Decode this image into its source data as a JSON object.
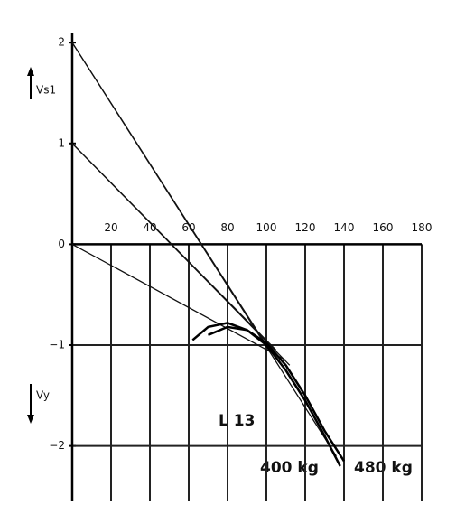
{
  "chart_data": {
    "type": "line",
    "xlim": [
      0,
      180
    ],
    "ylim": [
      -2.55,
      2.1
    ],
    "xticks": [
      20,
      40,
      60,
      80,
      100,
      120,
      140,
      160,
      180
    ],
    "yticks": [
      2,
      1,
      0,
      {
        "value": -1,
        "label": "−1"
      },
      {
        "value": -2,
        "label": "−2"
      }
    ],
    "grid": true,
    "y_label_up": "Vs1",
    "y_label_down": "Vy",
    "annotations": [
      "L 13",
      "400 kg",
      "480 kg"
    ],
    "series": [
      {
        "color": "#111",
        "x": [
          0,
          136
        ],
        "values": [
          2,
          -2.1
        ]
      },
      {
        "color": "#111",
        "x": [
          0,
          100
        ],
        "values": [
          2,
          -1.0
        ]
      },
      {
        "color": "#111",
        "x": [
          0,
          112
        ],
        "values": [
          1,
          -1.2
        ]
      },
      {
        "color": "#111",
        "x": [
          0,
          105
        ],
        "values": [
          1,
          -1.05
        ]
      },
      {
        "color": "#111",
        "x": [
          0,
          110
        ],
        "values": [
          0,
          -1.15
        ]
      },
      {
        "color": "#000",
        "x": [
          62,
          70,
          80,
          90,
          100,
          110,
          120,
          130,
          138
        ],
        "values": [
          -0.95,
          -0.82,
          -0.78,
          -0.85,
          -1.0,
          -1.25,
          -1.55,
          -1.9,
          -2.2
        ]
      },
      {
        "color": "#000",
        "x": [
          70,
          80,
          90,
          100,
          110,
          120,
          130,
          140
        ],
        "values": [
          -0.9,
          -0.82,
          -0.85,
          -0.98,
          -1.2,
          -1.5,
          -1.85,
          -2.15
        ]
      }
    ]
  }
}
